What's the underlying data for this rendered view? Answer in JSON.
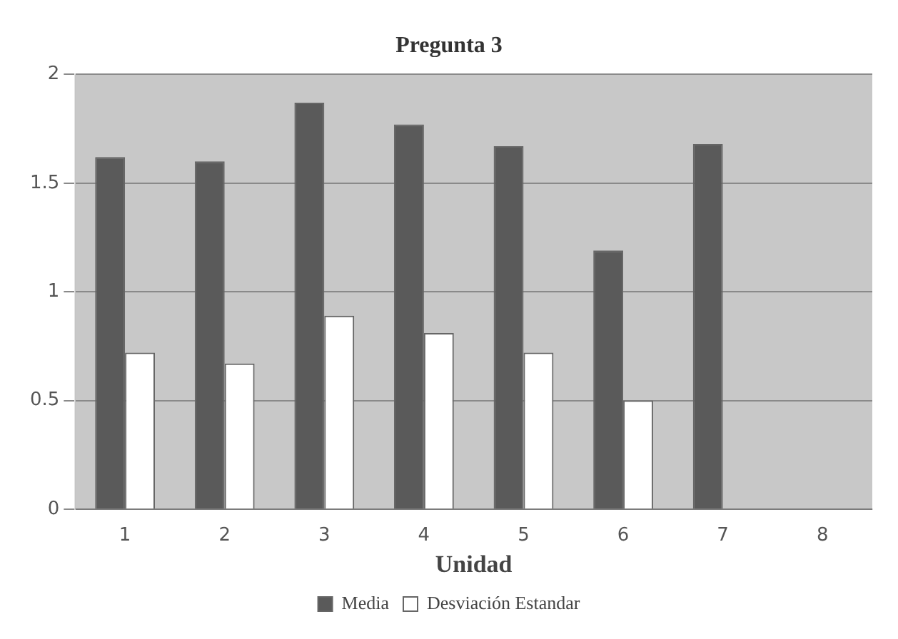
{
  "chart_data": {
    "type": "bar",
    "title": "Pregunta 3",
    "xlabel": "Unidad",
    "categories": [
      "1",
      "2",
      "3",
      "4",
      "5",
      "6",
      "7",
      "8"
    ],
    "series": [
      {
        "name": "Media",
        "color": "#5a5a5a",
        "values": [
          1.62,
          1.6,
          1.87,
          1.77,
          1.67,
          1.19,
          1.68,
          null
        ]
      },
      {
        "name": "Desviación Estandar",
        "color": "#ffffff",
        "values": [
          0.72,
          0.67,
          0.89,
          0.81,
          0.72,
          0.5,
          null,
          null
        ]
      }
    ],
    "ylim": [
      0,
      2
    ],
    "yticks": [
      0,
      0.5,
      1,
      1.5,
      2
    ],
    "grid": "y",
    "legend": "bottom"
  }
}
